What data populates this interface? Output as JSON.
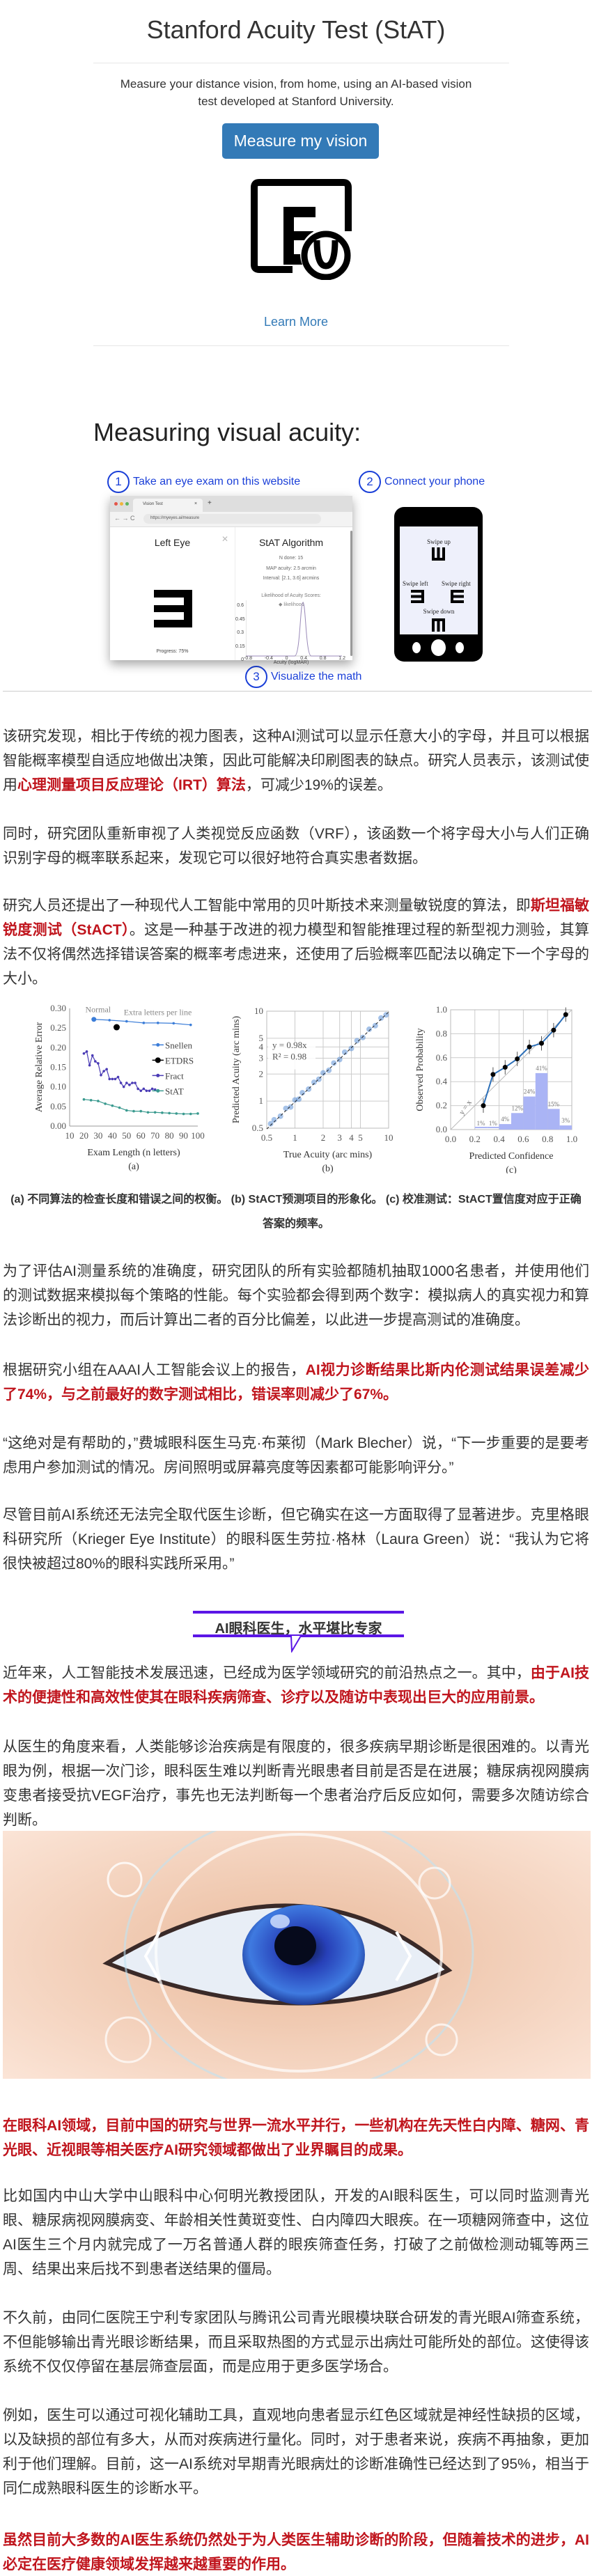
{
  "hero": {
    "title": "Stanford Acuity Test (StAT)",
    "subtitle": "Measure your distance vision, from home, using an AI-based vision test developed at Stanford University.",
    "button": "Measure my vision",
    "icon": "eye-chart-tablet-icon",
    "learn_more": "Learn More",
    "button_color": "#337ab7"
  },
  "diagram": {
    "title": "Measuring visual acuity:",
    "steps": [
      {
        "num": "1",
        "label": "Take an eye exam on this website"
      },
      {
        "num": "2",
        "label": "Connect your phone"
      },
      {
        "num": "3",
        "label": "Visualize the math"
      }
    ],
    "browser": {
      "tab": "Vision Test",
      "url": "https://myeyes.ai/measure",
      "left_title": "Left Eye",
      "progress": "Progress: 75%",
      "right_title": "StAT Algorithm",
      "n_done": "N done: 15",
      "map": "MAP acuity: 2.5 arcmin",
      "interval": "Interval: [2.1, 3.6] arcmins",
      "chart_title": "Likelihood of Acuity Scores:",
      "legend": "likelihood",
      "y_ticks": [
        "0.6",
        "0.45",
        "0.3",
        "0.15",
        "0"
      ],
      "x_ticks": [
        "-0.8",
        "-0.4",
        "0",
        "0.4",
        "0.8",
        "1.2"
      ],
      "x_label": "Acuity (logMAR)"
    },
    "phone": {
      "up": "Swipe up",
      "left": "Swipe left",
      "right": "Swipe right",
      "down": "Swipe down"
    }
  },
  "article": {
    "p1": [
      "该研究发现，相比于传统的视力图表，这种AI测试可以显示任意大小的字母，并且可以根据智能概率模型自适应地做出决策，因此可能解决印刷图表的缺点。研究人员表示，该测试使用",
      "心理测量项目反应理论（IRT）算法",
      "，可减少19%的误差。"
    ],
    "p2": "同时，研究团队重新审视了人类视觉反应函数（VRF），该函数一个将字母大小与人们正确识别字母的概率联系起来，发现它可以很好地符合真实患者数据。",
    "p3": [
      "研究人员还提出了一种现代人工智能中常用的贝叶斯技术来测量敏锐度的算法，即",
      "斯坦福敏锐度测试（StACT）",
      "。这是一种基于改进的视力模型和智能推理过程的新型视力测验，其算法不仅将偶然选择错误答案的概率考虑进来，还使用了后验概率匹配法以确定下一个字母的大小。"
    ],
    "caption": "(a) 不同算法的检查长度和错误之间的权衡。 (b) StACT预测项目的形象化。 (c) 校准测试：StACT置信度对应于正确答案的频率。",
    "p4": "为了评估AI测量系统的准确度，研究团队的所有实验都随机抽取1000名患者，并使用他们的测试数据来模拟每个策略的性能。每个实验都会得到两个数字：模拟病人的真实视力和算法诊断出的视力，而后计算出二者的百分比偏差，以此进一步提高测试的准确度。",
    "p5": [
      "根据研究小组在AAAI人工智能会议上的报告，",
      "AI视力诊断结果比斯内伦测试结果误差减少了74%，与之前最好的数字测试相比，错误率则减少了67%。"
    ],
    "p6": "“这绝对是有帮助的，”费城眼科医生马克·布莱彻（Mark Blecher）说，“下一步重要的是要考虑用户参加测试的情况。房间照明或屏幕亮度等因素都可能影响评分。”",
    "p7": "尽管目前AI系统还无法完全取代医生诊断，但它确实在这一方面取得了显著进步。克里格眼科研究所（Krieger Eye Institute）的眼科医生劳拉·格林（Laura Green）说：“我认为它将很快被超过80%的眼科实践所采用。”",
    "heading": "AI眼科医生，水平堪比专家",
    "p8": [
      "近年来，人工智能技术发展迅速，已经成为医学领域研究的前沿热点之一。其中，",
      "由于AI技术的便捷性和高效性使其在眼科疾病筛查、诊疗以及随访中表现出巨大的应用前景。"
    ],
    "p9": "从医生的角度来看，人类能够诊治疾病是有限度的，很多疾病早期诊断是很困难的。以青光眼为例，根据一次门诊，眼科医生难以判断青光眼患者目前是否是在进展；糖尿病视网膜病变患者接受抗VEGF治疗，事先也无法判断每一个患者治疗后反应如何，需要多次随访综合判断。",
    "p10": "在眼科AI领域，目前中国的研究与世界一流水平并行，一些机构在先天性白内障、糖网、青光眼、近视眼等相关医疗AI研究领域都做出了业界瞩目的成果。",
    "p11": "比如国内中山大学中山眼科中心何明光教授团队，开发的AI眼科医生，可以同时监测青光眼、糖尿病视网膜病变、年龄相关性黄斑变性、白内障四大眼疾。在一项糖网筛查中，这位AI医生三个月内就完成了一万名普通人群的眼疾筛查任务，打破了之前做检测动辄等两三周、结果出来后找不到患者送结果的僵局。",
    "p12": "不久前，由同仁医院王宁利专家团队与腾讯公司青光眼模块联合研发的青光眼AI筛查系统，不但能够输出青光眼诊断结果，而且采取热图的方式显示出病灶可能所处的部位。这使得该系统不仅仅停留在基层筛查层面，而是应用于更多医学场合。",
    "p13": "例如，医生可以通过可视化辅助工具，直观地向患者显示红色区域就是神经性缺损的区域，以及缺损的部位有多大，从而对疾病进行量化。同时，对于患者来说，疾病不再抽象，更加利于他们理解。目前，这一AI系统对早期青光眼病灶的诊断准确性已经达到了95%，相当于同仁成熟眼科医生的诊断水平。",
    "p14": "虽然目前大多数的AI医生系统仍然处于为人类医生辅助诊断的阶段，但随着技术的进步，AI必定在医疗健康领域发挥越来越重要的作用。",
    "highlight_color": "#c0151d",
    "heading_color": "#5b16e6"
  },
  "chart_data": [
    {
      "type": "line",
      "panel": "(a)",
      "xlabel": "Exam Length (n letters)",
      "ylabel": "Average Relative Error",
      "xlim": [
        10,
        100
      ],
      "ylim": [
        0,
        0.3
      ],
      "x_ticks": [
        10,
        20,
        30,
        40,
        50,
        60,
        70,
        80,
        90,
        100
      ],
      "y_ticks": [
        0.0,
        0.05,
        0.1,
        0.15,
        0.2,
        0.25,
        0.3
      ],
      "annotations": [
        "Normal",
        "Extra letters per line"
      ],
      "legend": "right",
      "series": [
        {
          "name": "Snellen",
          "color": "#3b7dd8",
          "x": [
            27,
            38,
            50,
            62,
            72,
            83,
            95
          ],
          "y": [
            0.272,
            0.27,
            0.267,
            0.263,
            0.263,
            0.262,
            0.258
          ]
        },
        {
          "name": "ETDRS",
          "color": "#000000",
          "x": [
            43
          ],
          "y": [
            0.252
          ]
        },
        {
          "name": "Fract",
          "color": "#4a3bb5",
          "x": [
            20,
            22,
            24,
            26,
            28,
            30,
            32,
            34,
            36,
            38,
            40,
            42,
            44,
            46,
            48,
            50,
            52,
            54,
            56,
            58,
            60,
            62,
            64,
            66,
            68,
            70
          ],
          "y": [
            0.185,
            0.19,
            0.155,
            0.18,
            0.165,
            0.16,
            0.13,
            0.14,
            0.145,
            0.12,
            0.12,
            0.12,
            0.125,
            0.11,
            0.1,
            0.11,
            0.105,
            0.11,
            0.11,
            0.095,
            0.09,
            0.095,
            0.09,
            0.09,
            0.095,
            0.093
          ]
        },
        {
          "name": "StAT",
          "color": "#3a9a8f",
          "x": [
            20,
            25,
            30,
            35,
            40,
            45,
            50,
            55,
            60,
            65,
            70,
            75,
            80,
            85,
            90,
            95,
            100
          ],
          "y": [
            0.068,
            0.066,
            0.064,
            0.057,
            0.052,
            0.047,
            0.04,
            0.038,
            0.038,
            0.035,
            0.035,
            0.034,
            0.033,
            0.032,
            0.031,
            0.031,
            0.032
          ]
        }
      ]
    },
    {
      "type": "scatter",
      "panel": "(b)",
      "xlabel": "True Acuity (arc mins)",
      "ylabel": "Predicted Acuity (arc mins)",
      "scale": "log",
      "xlim": [
        0.5,
        10
      ],
      "ylim": [
        0.5,
        10
      ],
      "x_ticks": [
        0.5,
        1,
        2,
        3,
        4,
        5,
        10
      ],
      "y_ticks": [
        0.5,
        1,
        2,
        3,
        4,
        5,
        10
      ],
      "fit": "y = 0.98x",
      "r2": "R² = 0.98",
      "points": [
        [
          0.55,
          0.56
        ],
        [
          0.6,
          0.62
        ],
        [
          0.7,
          0.68
        ],
        [
          0.8,
          0.83
        ],
        [
          0.9,
          0.86
        ],
        [
          1.0,
          1.03
        ],
        [
          1.1,
          1.05
        ],
        [
          1.2,
          1.24
        ],
        [
          1.4,
          1.36
        ],
        [
          1.6,
          1.62
        ],
        [
          1.8,
          1.75
        ],
        [
          2.0,
          2.06
        ],
        [
          2.3,
          2.2
        ],
        [
          2.6,
          2.65
        ],
        [
          3.0,
          2.9
        ],
        [
          3.4,
          3.5
        ],
        [
          4.0,
          3.85
        ],
        [
          4.6,
          4.7
        ],
        [
          5.3,
          5.1
        ],
        [
          6.2,
          6.3
        ],
        [
          7.2,
          6.9
        ],
        [
          8.3,
          8.4
        ],
        [
          9.4,
          9.1
        ]
      ]
    },
    {
      "type": "line",
      "panel": "(c)",
      "xlabel": "Predicted Confidence",
      "ylabel": "Observed Probability",
      "xlim": [
        0,
        1
      ],
      "ylim": [
        0,
        1
      ],
      "x_ticks": [
        0.0,
        0.2,
        0.4,
        0.6,
        0.8,
        1.0
      ],
      "y_ticks": [
        0.0,
        0.2,
        0.4,
        0.6,
        0.8,
        1.0
      ],
      "reference": "y = x",
      "x": [
        0.27,
        0.35,
        0.45,
        0.55,
        0.65,
        0.75,
        0.85,
        0.95
      ],
      "y": [
        0.2,
        0.46,
        0.52,
        0.59,
        0.69,
        0.72,
        0.83,
        0.96
      ],
      "histogram": {
        "bins": [
          0.2,
          0.3,
          0.4,
          0.5,
          0.6,
          0.7,
          0.8,
          0.9
        ],
        "labels": [
          "1%",
          "1%",
          "4%",
          "12%",
          "24%",
          "41%",
          "15%",
          "3%"
        ],
        "values": [
          1,
          1,
          4,
          12,
          24,
          41,
          15,
          3
        ]
      }
    }
  ]
}
